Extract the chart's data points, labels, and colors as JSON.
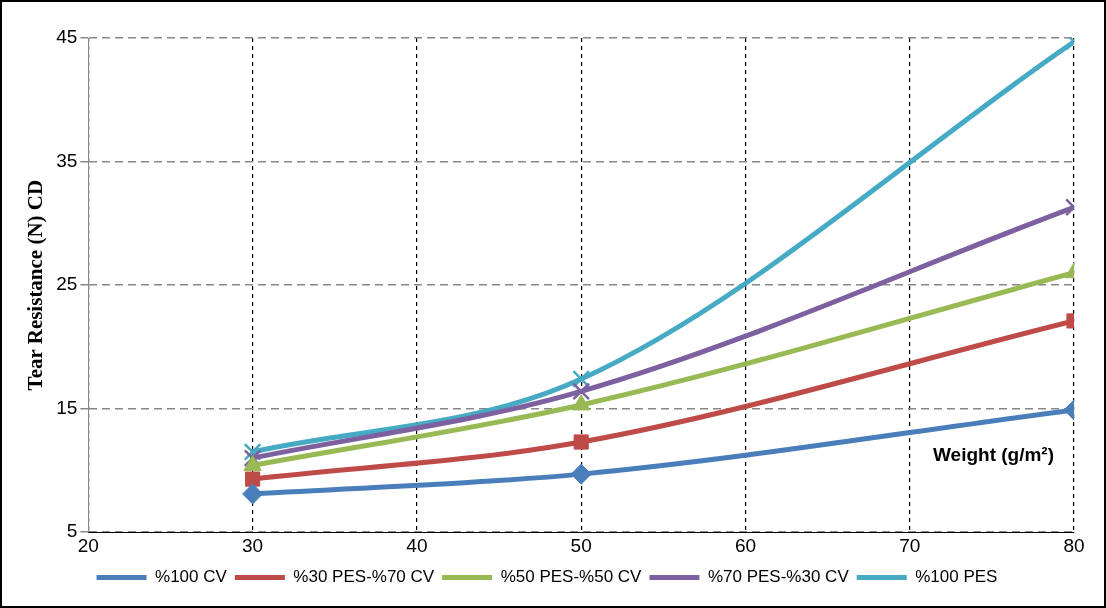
{
  "chart_data": {
    "type": "line",
    "xlabel": "Weight (g/m²)",
    "ylabel": "Tear Resistance (N) CD",
    "x": [
      30,
      50,
      80
    ],
    "xlim": [
      20,
      80
    ],
    "xticks": [
      20,
      30,
      40,
      50,
      60,
      70,
      80
    ],
    "ylim": [
      5,
      45
    ],
    "yticks": [
      5,
      15,
      25,
      35,
      45
    ],
    "grid": true,
    "legend": "bottom",
    "series": [
      {
        "name": "%100 CV",
        "color": "#4a7ebb",
        "marker": "diamond",
        "values": [
          8.1,
          9.7,
          14.9
        ]
      },
      {
        "name": "%30 PES-%70 CV",
        "color": "#be4b48",
        "marker": "square",
        "values": [
          9.3,
          12.3,
          22.1
        ]
      },
      {
        "name": "%50 PES-%50 CV",
        "color": "#98b954",
        "marker": "triangle",
        "values": [
          10.4,
          15.3,
          26.0
        ]
      },
      {
        "name": "%70 PES-%30 CV",
        "color": "#7d60a0",
        "marker": "cross",
        "values": [
          11.0,
          16.4,
          31.3
        ]
      },
      {
        "name": "%100 PES",
        "color": "#46aac5",
        "marker": "cross",
        "values": [
          11.5,
          17.4,
          44.7
        ]
      }
    ]
  }
}
